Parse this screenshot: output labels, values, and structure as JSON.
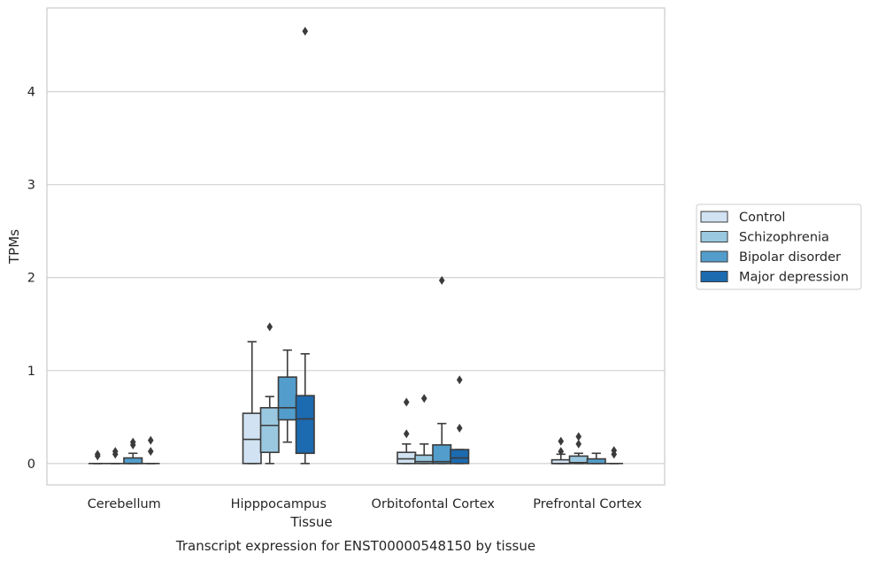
{
  "chart_data": {
    "type": "box",
    "title": "",
    "caption": "Transcript expression for ENST00000548150 by tissue",
    "xlabel": "Tissue",
    "ylabel": "TPMs",
    "ylim": [
      -0.23,
      4.9
    ],
    "yticks": [
      0,
      1,
      2,
      3,
      4
    ],
    "grid": true,
    "legend_position": "right",
    "categories": [
      "Cerebellum",
      "Hipppocampus",
      "Orbitofontal Cortex",
      "Prefrontal Cortex"
    ],
    "series": [
      {
        "name": "Control",
        "color": "#d1e2f2",
        "boxes": [
          {
            "whislo": 0,
            "q1": 0,
            "med": 0,
            "q3": 0,
            "whishi": 0,
            "fliers": [
              0.08,
              0.1
            ]
          },
          {
            "whislo": 0,
            "q1": 0,
            "med": 0.26,
            "q3": 0.54,
            "whishi": 1.31,
            "fliers": []
          },
          {
            "whislo": 0,
            "q1": 0,
            "med": 0.05,
            "q3": 0.12,
            "whishi": 0.21,
            "fliers": [
              0.32,
              0.66
            ]
          },
          {
            "whislo": 0,
            "q1": 0,
            "med": 0,
            "q3": 0.04,
            "whishi": 0.1,
            "fliers": [
              0.13,
              0.24
            ]
          }
        ]
      },
      {
        "name": "Schizophrenia",
        "color": "#9ac8e0",
        "boxes": [
          {
            "whislo": 0,
            "q1": 0,
            "med": 0,
            "q3": 0,
            "whishi": 0,
            "fliers": [
              0.1,
              0.13
            ]
          },
          {
            "whislo": 0,
            "q1": 0.12,
            "med": 0.41,
            "q3": 0.6,
            "whishi": 0.72,
            "fliers": [
              1.47
            ]
          },
          {
            "whislo": 0,
            "q1": 0,
            "med": 0.02,
            "q3": 0.09,
            "whishi": 0.21,
            "fliers": [
              0.7
            ]
          },
          {
            "whislo": 0,
            "q1": 0,
            "med": 0.01,
            "q3": 0.08,
            "whishi": 0.11,
            "fliers": [
              0.21,
              0.29
            ]
          }
        ]
      },
      {
        "name": "Bipolar disorder",
        "color": "#529dcc",
        "boxes": [
          {
            "whislo": 0,
            "q1": 0,
            "med": 0,
            "q3": 0.06,
            "whishi": 0.11,
            "fliers": [
              0.2,
              0.23
            ]
          },
          {
            "whislo": 0.23,
            "q1": 0.47,
            "med": 0.6,
            "q3": 0.93,
            "whishi": 1.22,
            "fliers": []
          },
          {
            "whislo": 0,
            "q1": 0,
            "med": 0.02,
            "q3": 0.2,
            "whishi": 0.43,
            "fliers": [
              1.97
            ]
          },
          {
            "whislo": 0,
            "q1": 0,
            "med": 0,
            "q3": 0.05,
            "whishi": 0.11,
            "fliers": []
          }
        ]
      },
      {
        "name": "Major depression",
        "color": "#1c6aaf",
        "boxes": [
          {
            "whislo": 0,
            "q1": 0,
            "med": 0,
            "q3": 0,
            "whishi": 0,
            "fliers": [
              0.13,
              0.25
            ]
          },
          {
            "whislo": 0,
            "q1": 0.11,
            "med": 0.48,
            "q3": 0.73,
            "whishi": 1.18,
            "fliers": [
              4.65
            ]
          },
          {
            "whislo": 0,
            "q1": 0,
            "med": 0.06,
            "q3": 0.15,
            "whishi": 0.15,
            "fliers": [
              0.38,
              0.9
            ]
          },
          {
            "whislo": 0,
            "q1": 0,
            "med": 0,
            "q3": 0,
            "whishi": 0,
            "fliers": [
              0.1,
              0.14
            ]
          }
        ]
      }
    ]
  }
}
